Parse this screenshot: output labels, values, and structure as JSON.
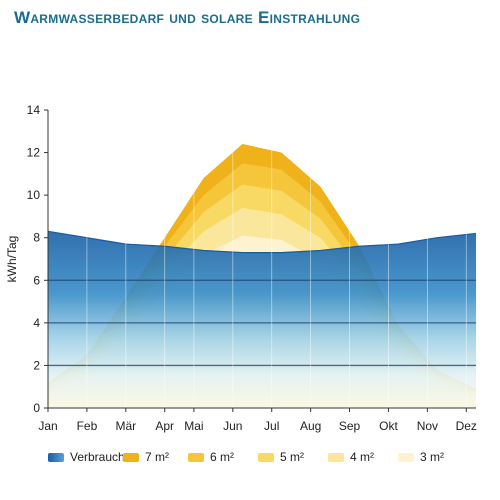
{
  "page": {
    "title": "Warmwasserbedarf und solare Einstrahlung"
  },
  "chart_data": {
    "type": "area",
    "title": "Warmwasserbedarf und solare Einstrahlung",
    "xlabel": "",
    "ylabel": "kWh/Tag",
    "ylim": [
      0,
      14
    ],
    "yticks": [
      0,
      2,
      4,
      6,
      8,
      10,
      12,
      14
    ],
    "grid": false,
    "legend": "bottom",
    "x": [
      0,
      1,
      2,
      3,
      4,
      5,
      6,
      7,
      8,
      9,
      10,
      11
    ],
    "tick_labels": [
      {
        "x": 0,
        "label": "Jan"
      },
      {
        "x": 1,
        "label": "Feb"
      },
      {
        "x": 2,
        "label": "Mär"
      },
      {
        "x": 3,
        "label": "Apr"
      },
      {
        "x": 3.75,
        "label": "Mai"
      },
      {
        "x": 4.75,
        "label": "Jun"
      },
      {
        "x": 5.75,
        "label": "Jul"
      },
      {
        "x": 6.75,
        "label": "Aug"
      },
      {
        "x": 7.75,
        "label": "Sep"
      },
      {
        "x": 8.75,
        "label": "Okt"
      },
      {
        "x": 9.75,
        "label": "Nov"
      },
      {
        "x": 10.75,
        "label": "Dez"
      }
    ],
    "series": [
      {
        "name": "Verbrauch",
        "color": "#2f6fb4",
        "values": [
          8.3,
          8.0,
          7.7,
          7.6,
          7.4,
          7.3,
          7.3,
          7.4,
          7.6,
          7.7,
          8.0,
          8.2
        ]
      },
      {
        "name": "7 m²",
        "color": "#f0b21a",
        "values": [
          1.2,
          2.5,
          5.2,
          8.0,
          10.8,
          12.4,
          12.0,
          10.4,
          7.6,
          3.9,
          1.8,
          0.9
        ]
      },
      {
        "name": "6 m²",
        "color": "#f5c63a",
        "values": [
          1.1,
          2.3,
          4.9,
          7.6,
          10.0,
          11.5,
          11.2,
          9.7,
          7.1,
          3.6,
          1.6,
          0.8
        ]
      },
      {
        "name": "5 m²",
        "color": "#f8d964",
        "values": [
          1.0,
          2.1,
          4.5,
          7.0,
          9.2,
          10.5,
          10.2,
          8.9,
          6.5,
          3.3,
          1.5,
          0.7
        ]
      },
      {
        "name": "4 m²",
        "color": "#fbe79b",
        "values": [
          0.9,
          1.9,
          4.1,
          6.4,
          8.3,
          9.4,
          9.1,
          8.0,
          5.9,
          3.0,
          1.3,
          0.6
        ]
      },
      {
        "name": "3 m²",
        "color": "#fdf3d0",
        "values": [
          0.7,
          1.6,
          3.6,
          5.6,
          7.2,
          8.1,
          7.9,
          6.9,
          5.1,
          2.6,
          1.1,
          0.5
        ]
      }
    ]
  }
}
